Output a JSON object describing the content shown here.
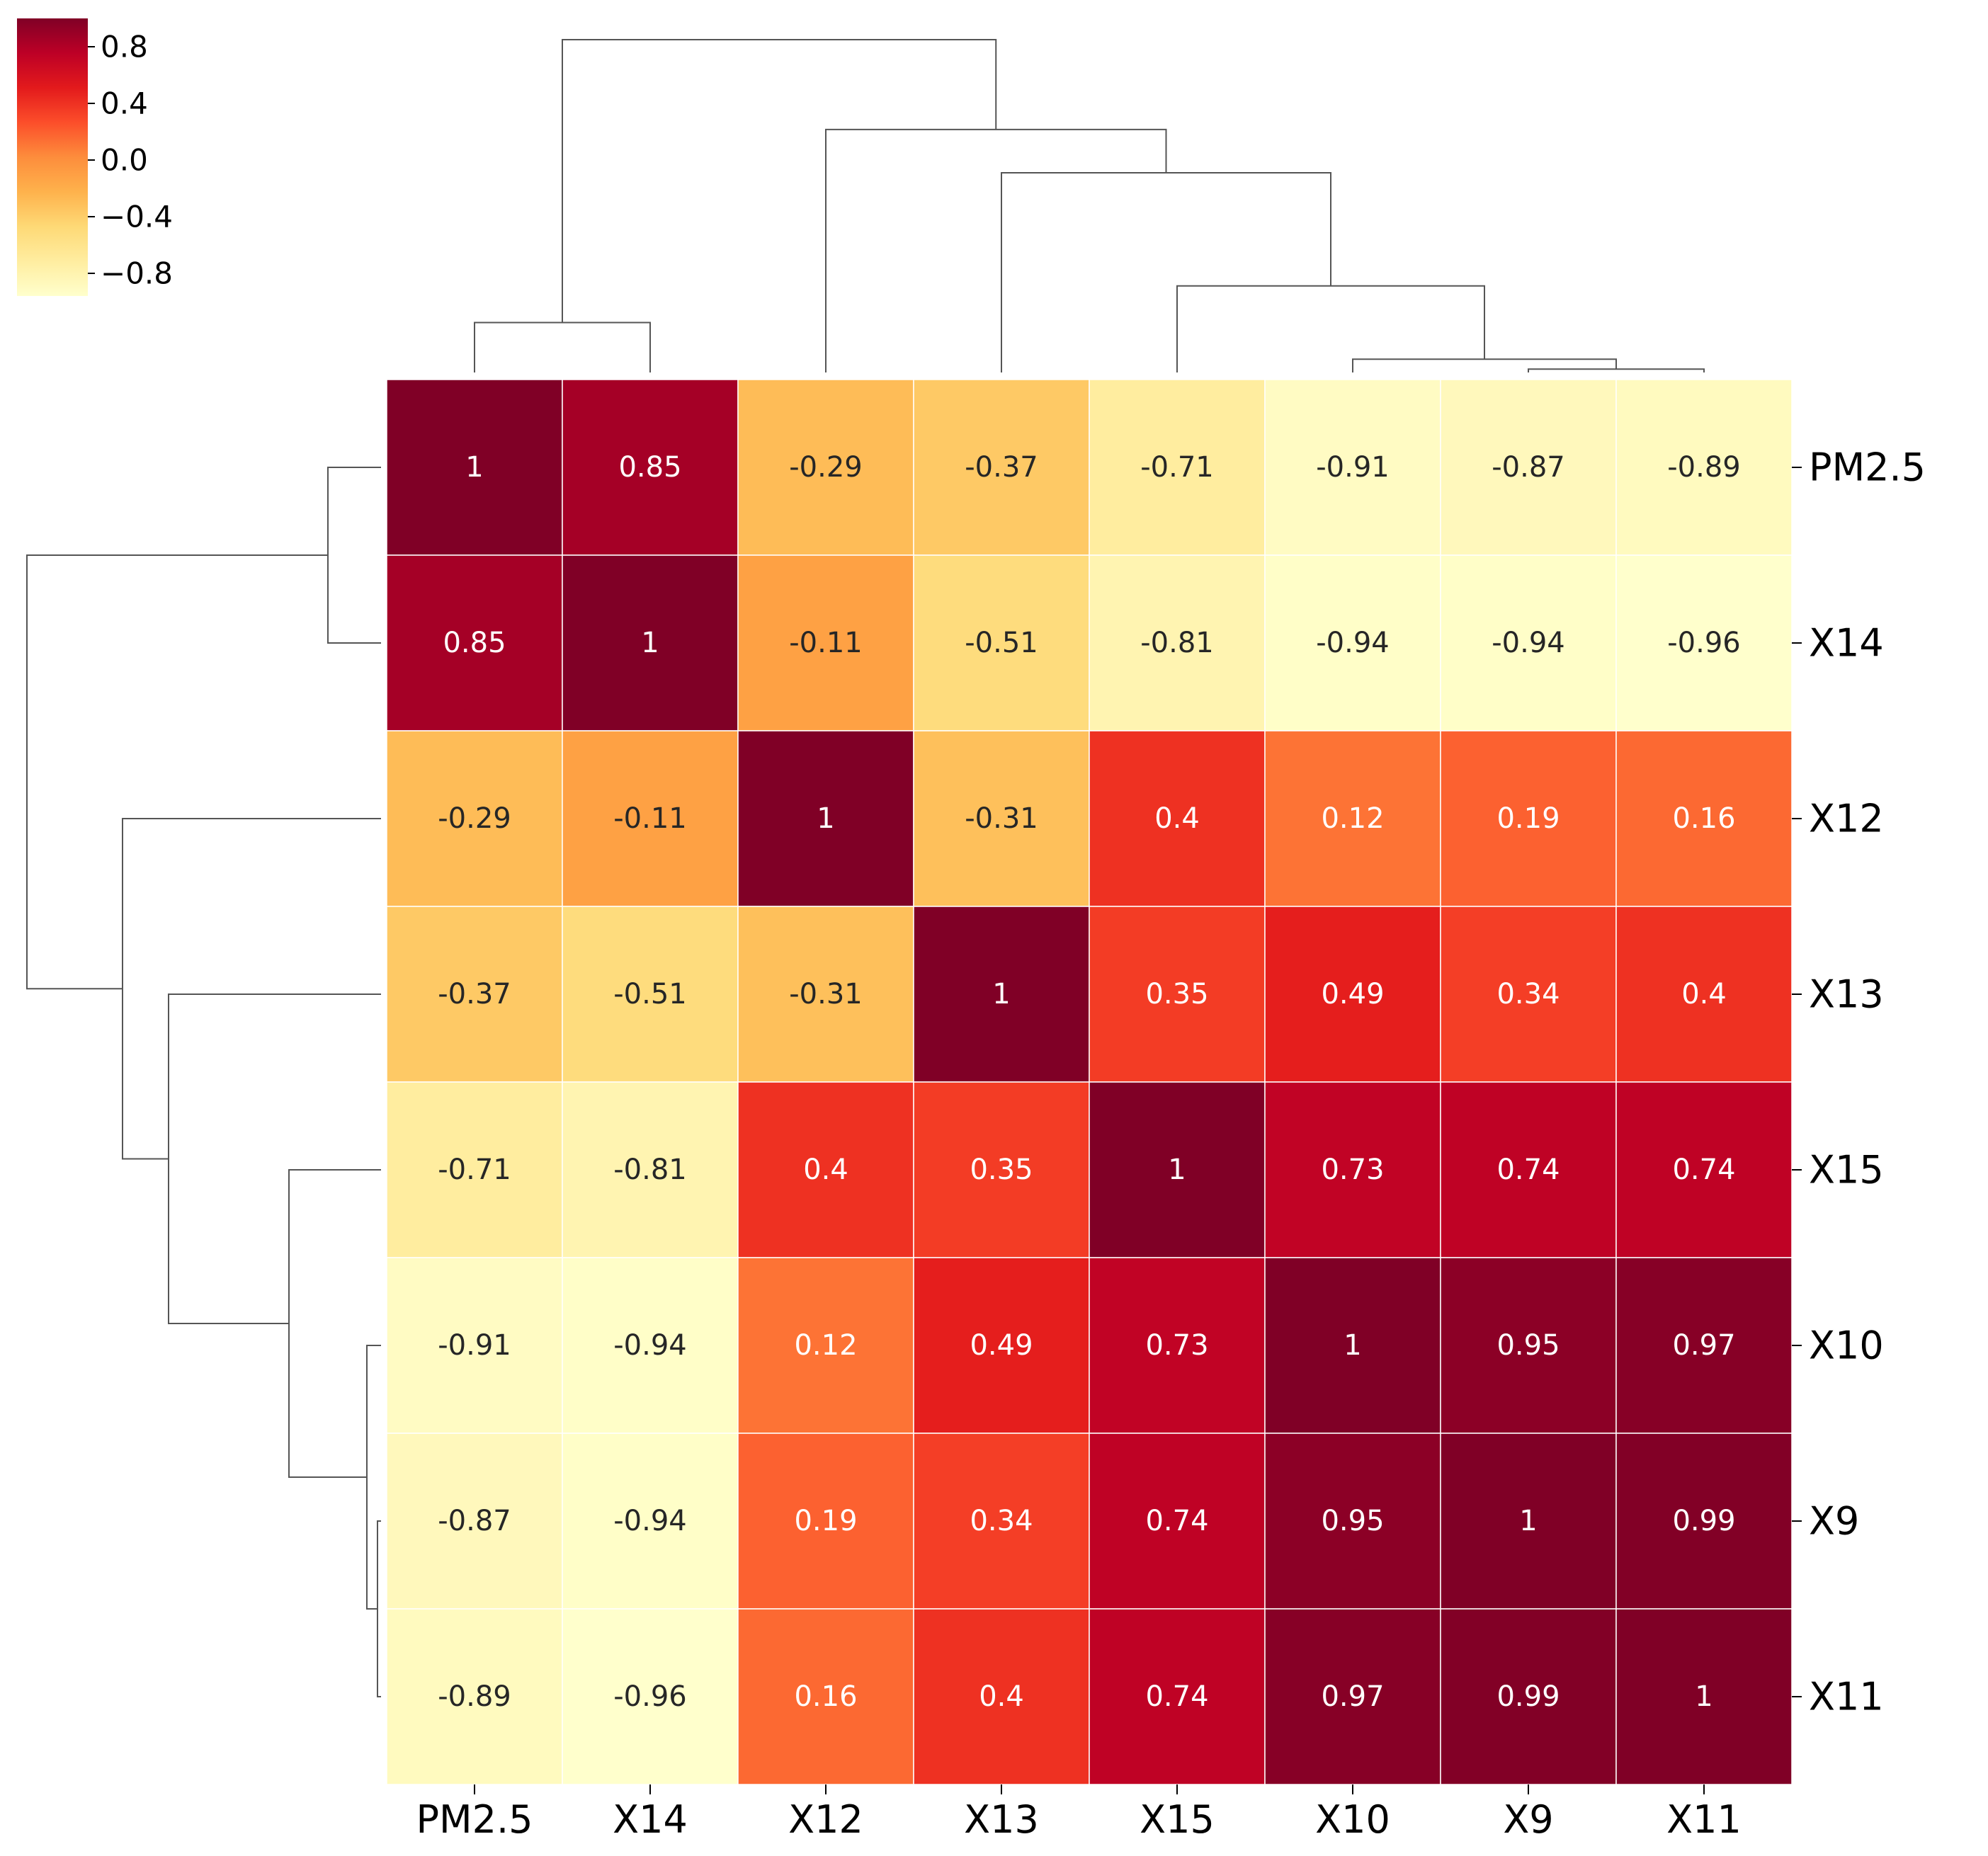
{
  "chart_data": {
    "type": "heatmap",
    "title": "",
    "variables": [
      "PM2.5",
      "X14",
      "X12",
      "X13",
      "X15",
      "X10",
      "X9",
      "X11"
    ],
    "matrix": [
      [
        1,
        0.85,
        -0.29,
        -0.37,
        -0.71,
        -0.91,
        -0.87,
        -0.89
      ],
      [
        0.85,
        1,
        -0.11,
        -0.51,
        -0.81,
        -0.94,
        -0.94,
        -0.96
      ],
      [
        -0.29,
        -0.11,
        1,
        -0.31,
        0.4,
        0.12,
        0.19,
        0.16
      ],
      [
        -0.37,
        -0.51,
        -0.31,
        1,
        0.35,
        0.49,
        0.34,
        0.4
      ],
      [
        -0.71,
        -0.81,
        0.4,
        0.35,
        1,
        0.73,
        0.74,
        0.74
      ],
      [
        -0.91,
        -0.94,
        0.12,
        0.49,
        0.73,
        1,
        0.95,
        0.97
      ],
      [
        -0.87,
        -0.94,
        0.19,
        0.34,
        0.74,
        0.95,
        1,
        0.99
      ],
      [
        -0.89,
        -0.96,
        0.16,
        0.4,
        0.74,
        0.97,
        0.99,
        1
      ]
    ],
    "colormap": "YlOrRd",
    "color_stops": [
      "#ffffcc",
      "#ffeda0",
      "#fed976",
      "#feb24c",
      "#fd8d3c",
      "#fc4e2a",
      "#e31a1c",
      "#bd0026",
      "#800026"
    ],
    "value_range": [
      -0.96,
      1
    ],
    "colorbar": {
      "ticks": [
        0.8,
        0.4,
        0.0,
        -0.4,
        -0.8
      ],
      "tick_labels": [
        "0.8",
        "0.4",
        "0.0",
        "−0.4",
        "−0.8"
      ],
      "position": "top-left"
    },
    "dendrogram": {
      "order": [
        "PM2.5",
        "X14",
        "X12",
        "X13",
        "X15",
        "X10",
        "X9",
        "X11"
      ],
      "linkage": [
        {
          "left": "X9",
          "right": "X11",
          "height": 0.01
        },
        {
          "left": "X10",
          "right": "X9+X11",
          "height": 0.04
        },
        {
          "left": "X15",
          "right": "X10+X9+X11",
          "height": 0.26
        },
        {
          "left": "PM2.5",
          "right": "X14",
          "height": 0.15
        },
        {
          "left": "X13",
          "right": "X15+X10+X9+X11",
          "height": 0.6
        },
        {
          "left": "X12",
          "right": "X13+X15+X10+X9+X11",
          "height": 0.73
        },
        {
          "left": "PM2.5+X14",
          "right": "X12+X13+X15+X10+X9+X11",
          "height": 1.0
        }
      ]
    },
    "row_labels_side": "right",
    "column_labels_side": "bottom"
  }
}
